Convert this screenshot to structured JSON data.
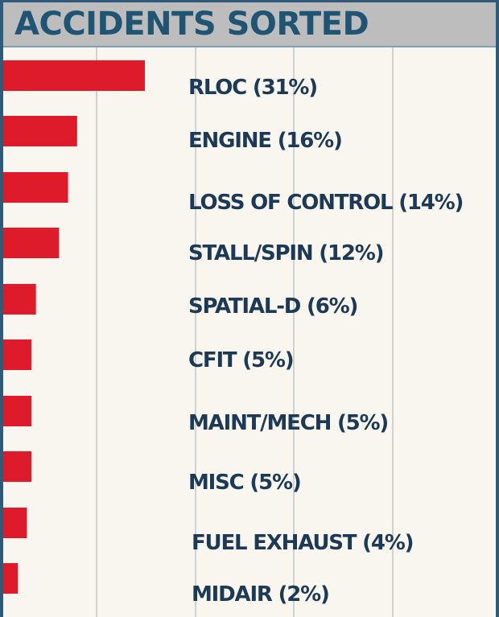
{
  "title": "ACCIDENTS SORTED",
  "colors": {
    "bar": "#dd1b2a",
    "frame": "#2f5a78",
    "title_bg": "#bdbdbd",
    "title_text": "#1f5573",
    "plot_bg": "#f9f6ef",
    "label_text": "#1c3a55",
    "gridline": "#cfd2cf"
  },
  "chart_data": {
    "type": "bar",
    "orientation": "horizontal",
    "title": "ACCIDENTS SORTED",
    "xlabel": "",
    "ylabel": "",
    "xlim": [
      0,
      100
    ],
    "grid": true,
    "legend": "none",
    "categories": [
      "RLOC",
      "ENGINE",
      "LOSS OF CONTROL",
      "STALL/SPIN",
      "SPATIAL-D",
      "CFIT",
      "MAINT/MECH",
      "MISC",
      "FUEL EXHAUST",
      "MIDAIR"
    ],
    "values": [
      31,
      16,
      14,
      12,
      6,
      5,
      5,
      5,
      4,
      2
    ],
    "labels": [
      "RLOC (31%)",
      "ENGINE (16%)",
      "LOSS OF CONTROL (14%)",
      "STALL/SPIN (12%)",
      "SPATIAL-D (6%)",
      "CFIT (5%)",
      "MAINT/MECH (5%)",
      "MISC (5%)",
      "FUEL EXHAUST (4%)",
      "MIDAIR (2%)"
    ]
  }
}
